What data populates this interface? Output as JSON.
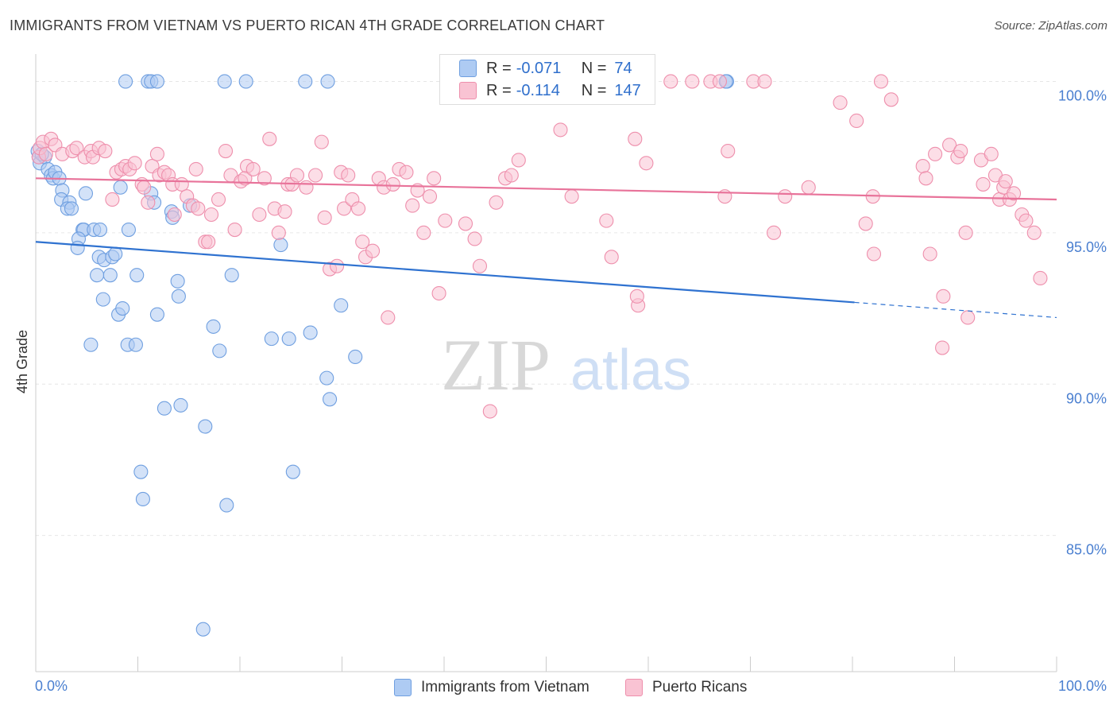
{
  "header": {
    "title": "IMMIGRANTS FROM VIETNAM VS PUERTO RICAN 4TH GRADE CORRELATION CHART",
    "source": "Source: ZipAtlas.com"
  },
  "watermark": {
    "zip": "ZIP",
    "atlas": "atlas"
  },
  "legend": {
    "r_label": "R =",
    "n_label": "N =",
    "rows": [
      {
        "r": "-0.071",
        "n": "74",
        "fill": "#aecbf3",
        "stroke": "#6f9fe0"
      },
      {
        "r": "-0.114",
        "n": "147",
        "fill": "#f9c3d3",
        "stroke": "#ee8fac"
      }
    ]
  },
  "bottom_legend": {
    "items": [
      {
        "label": "Immigrants from Vietnam",
        "fill": "#aecbf3",
        "stroke": "#6f9fe0"
      },
      {
        "label": "Puerto Ricans",
        "fill": "#f9c3d3",
        "stroke": "#ee8fac"
      }
    ]
  },
  "colors": {
    "blue_line": "#2f72d0",
    "pink_line": "#e8739a",
    "tick_label": "#4a7fd0",
    "grid": "#e6e6e6"
  },
  "chart_data": {
    "type": "scatter",
    "title": "IMMIGRANTS FROM VIETNAM VS PUERTO RICAN 4TH GRADE CORRELATION CHART",
    "ylabel": "4th Grade",
    "xlabel": "",
    "xlim": [
      0,
      100
    ],
    "ylim": [
      80.5,
      100.8
    ],
    "x_tick_labels": [
      "0.0%",
      "100.0%"
    ],
    "y_ticks": [
      85,
      90,
      95,
      100
    ],
    "y_tick_labels": [
      "85.0%",
      "90.0%",
      "95.0%",
      "100.0%"
    ],
    "grid": "horizontal dashed",
    "legend_position": "top-center",
    "series": [
      {
        "name": "Immigrants from Vietnam",
        "r": -0.071,
        "n": 74,
        "trend": {
          "x0": 0,
          "y0": 94.7,
          "x1": 80.2,
          "y1": 92.7,
          "dash_to_x": 100,
          "dash_to_y": 92.2
        },
        "points": [
          [
            0.2,
            97.7
          ],
          [
            0.3,
            97.5
          ],
          [
            0.4,
            97.3
          ],
          [
            0.9,
            97.5
          ],
          [
            0.6,
            97.6
          ],
          [
            1.2,
            97.1
          ],
          [
            1.5,
            96.9
          ],
          [
            1.7,
            96.8
          ],
          [
            1.9,
            97.0
          ],
          [
            2.3,
            96.8
          ],
          [
            2.6,
            96.4
          ],
          [
            2.5,
            96.1
          ],
          [
            3.3,
            96.0
          ],
          [
            3.1,
            95.8
          ],
          [
            3.5,
            95.8
          ],
          [
            4.9,
            96.3
          ],
          [
            4.6,
            95.1
          ],
          [
            4.7,
            95.1
          ],
          [
            5.7,
            95.1
          ],
          [
            4.2,
            94.8
          ],
          [
            4.1,
            94.5
          ],
          [
            6.3,
            95.1
          ],
          [
            9.1,
            95.1
          ],
          [
            8.3,
            96.5
          ],
          [
            11.3,
            96.3
          ],
          [
            11.6,
            96.0
          ],
          [
            13.3,
            95.7
          ],
          [
            13.4,
            95.5
          ],
          [
            15.1,
            95.9
          ],
          [
            6.2,
            94.2
          ],
          [
            6.7,
            94.1
          ],
          [
            7.5,
            94.2
          ],
          [
            7.8,
            94.3
          ],
          [
            6.0,
            93.6
          ],
          [
            7.3,
            93.6
          ],
          [
            9.9,
            93.6
          ],
          [
            13.9,
            93.4
          ],
          [
            19.2,
            93.6
          ],
          [
            6.6,
            92.8
          ],
          [
            8.1,
            92.3
          ],
          [
            8.5,
            92.5
          ],
          [
            11.9,
            92.3
          ],
          [
            14.0,
            92.9
          ],
          [
            5.4,
            91.3
          ],
          [
            9.0,
            91.3
          ],
          [
            9.8,
            91.3
          ],
          [
            17.4,
            91.9
          ],
          [
            18.0,
            91.1
          ],
          [
            23.1,
            91.5
          ],
          [
            24.8,
            91.5
          ],
          [
            26.9,
            91.7
          ],
          [
            29.9,
            92.6
          ],
          [
            31.3,
            90.9
          ],
          [
            28.5,
            90.2
          ],
          [
            28.8,
            89.5
          ],
          [
            12.6,
            89.2
          ],
          [
            14.2,
            89.3
          ],
          [
            16.6,
            88.6
          ],
          [
            10.3,
            87.1
          ],
          [
            25.2,
            87.1
          ],
          [
            10.5,
            86.2
          ],
          [
            18.7,
            86.0
          ],
          [
            16.4,
            81.9
          ],
          [
            8.8,
            100.0
          ],
          [
            11.0,
            100.0
          ],
          [
            11.3,
            100.0
          ],
          [
            11.9,
            100.0
          ],
          [
            18.5,
            100.0
          ],
          [
            20.6,
            100.0
          ],
          [
            26.4,
            100.0
          ],
          [
            28.6,
            100.0
          ],
          [
            67.7,
            100.0
          ],
          [
            67.6,
            100.0
          ],
          [
            24.0,
            94.6
          ]
        ]
      },
      {
        "name": "Puerto Ricans",
        "r": -0.114,
        "n": 147,
        "trend": {
          "x0": 0,
          "y0": 96.8,
          "x1": 100,
          "y1": 96.1
        },
        "points": [
          [
            0.3,
            97.5
          ],
          [
            0.4,
            97.8
          ],
          [
            0.7,
            98.0
          ],
          [
            1.0,
            97.6
          ],
          [
            1.5,
            98.1
          ],
          [
            1.9,
            97.9
          ],
          [
            2.6,
            97.6
          ],
          [
            3.6,
            97.7
          ],
          [
            4.0,
            97.8
          ],
          [
            4.8,
            97.5
          ],
          [
            5.4,
            97.7
          ],
          [
            5.6,
            97.5
          ],
          [
            6.2,
            97.8
          ],
          [
            6.8,
            97.7
          ],
          [
            7.5,
            96.1
          ],
          [
            7.9,
            97.0
          ],
          [
            8.4,
            97.1
          ],
          [
            8.8,
            97.2
          ],
          [
            9.2,
            97.1
          ],
          [
            9.7,
            97.3
          ],
          [
            10.4,
            96.6
          ],
          [
            10.6,
            96.5
          ],
          [
            11.0,
            96.0
          ],
          [
            11.4,
            97.2
          ],
          [
            11.9,
            97.6
          ],
          [
            12.1,
            96.9
          ],
          [
            12.6,
            97.0
          ],
          [
            13.0,
            96.9
          ],
          [
            13.4,
            96.6
          ],
          [
            13.6,
            95.6
          ],
          [
            14.3,
            96.6
          ],
          [
            14.8,
            96.2
          ],
          [
            15.4,
            95.9
          ],
          [
            15.9,
            95.8
          ],
          [
            15.7,
            97.1
          ],
          [
            16.6,
            94.7
          ],
          [
            16.9,
            94.7
          ],
          [
            17.2,
            95.6
          ],
          [
            17.9,
            96.1
          ],
          [
            18.6,
            97.7
          ],
          [
            19.1,
            96.9
          ],
          [
            19.5,
            95.1
          ],
          [
            20.1,
            96.7
          ],
          [
            20.7,
            97.2
          ],
          [
            20.5,
            96.8
          ],
          [
            21.3,
            97.1
          ],
          [
            21.9,
            95.6
          ],
          [
            22.4,
            96.8
          ],
          [
            22.9,
            98.1
          ],
          [
            23.4,
            95.8
          ],
          [
            23.8,
            95.0
          ],
          [
            24.4,
            95.7
          ],
          [
            24.7,
            96.6
          ],
          [
            25.1,
            96.6
          ],
          [
            25.6,
            96.9
          ],
          [
            26.5,
            96.5
          ],
          [
            27.4,
            96.9
          ],
          [
            28.0,
            98.0
          ],
          [
            28.3,
            95.5
          ],
          [
            28.8,
            93.8
          ],
          [
            29.5,
            93.9
          ],
          [
            29.9,
            97.0
          ],
          [
            30.2,
            95.8
          ],
          [
            30.6,
            96.9
          ],
          [
            31.0,
            96.1
          ],
          [
            31.6,
            95.8
          ],
          [
            32.0,
            94.7
          ],
          [
            32.3,
            94.2
          ],
          [
            33.0,
            94.4
          ],
          [
            33.6,
            96.8
          ],
          [
            34.1,
            96.5
          ],
          [
            34.5,
            92.2
          ],
          [
            35.0,
            96.6
          ],
          [
            35.6,
            97.1
          ],
          [
            36.3,
            97.0
          ],
          [
            36.9,
            95.9
          ],
          [
            37.4,
            96.4
          ],
          [
            38.0,
            95.0
          ],
          [
            38.6,
            96.2
          ],
          [
            39.0,
            96.8
          ],
          [
            39.5,
            93.0
          ],
          [
            40.1,
            95.4
          ],
          [
            41.0,
            100.0
          ],
          [
            42.1,
            95.3
          ],
          [
            43.0,
            94.8
          ],
          [
            43.5,
            93.9
          ],
          [
            44.5,
            89.1
          ],
          [
            45.1,
            96.0
          ],
          [
            46.0,
            96.8
          ],
          [
            46.6,
            96.9
          ],
          [
            47.3,
            97.4
          ],
          [
            48.0,
            100.0
          ],
          [
            50.6,
            100.0
          ],
          [
            51.1,
            100.0
          ],
          [
            51.6,
            100.0
          ],
          [
            51.4,
            98.4
          ],
          [
            52.5,
            96.2
          ],
          [
            55.5,
            100.0
          ],
          [
            57.0,
            100.0
          ],
          [
            55.9,
            95.4
          ],
          [
            56.4,
            94.2
          ],
          [
            58.7,
            98.1
          ],
          [
            59.0,
            92.6
          ],
          [
            59.8,
            97.3
          ],
          [
            58.9,
            92.9
          ],
          [
            62.2,
            100.0
          ],
          [
            64.3,
            100.0
          ],
          [
            66.1,
            100.0
          ],
          [
            67.8,
            97.7
          ],
          [
            67.5,
            96.2
          ],
          [
            67.0,
            100.0
          ],
          [
            70.3,
            100.0
          ],
          [
            71.4,
            100.0
          ],
          [
            72.3,
            95.0
          ],
          [
            73.4,
            96.2
          ],
          [
            75.7,
            96.5
          ],
          [
            78.8,
            99.3
          ],
          [
            80.4,
            98.7
          ],
          [
            81.3,
            95.3
          ],
          [
            82.1,
            94.3
          ],
          [
            82.0,
            96.2
          ],
          [
            82.8,
            100.0
          ],
          [
            83.8,
            99.4
          ],
          [
            86.9,
            97.2
          ],
          [
            87.2,
            96.8
          ],
          [
            87.6,
            94.3
          ],
          [
            88.1,
            97.6
          ],
          [
            88.8,
            91.2
          ],
          [
            88.9,
            92.9
          ],
          [
            89.5,
            97.9
          ],
          [
            90.3,
            97.5
          ],
          [
            90.6,
            97.7
          ],
          [
            91.1,
            95.0
          ],
          [
            91.3,
            92.2
          ],
          [
            92.6,
            97.4
          ],
          [
            92.8,
            96.6
          ],
          [
            93.6,
            97.6
          ],
          [
            94.0,
            96.9
          ],
          [
            94.4,
            96.1
          ],
          [
            94.8,
            96.5
          ],
          [
            95.0,
            96.7
          ],
          [
            95.4,
            96.1
          ],
          [
            95.8,
            96.3
          ],
          [
            96.6,
            95.6
          ],
          [
            97.0,
            95.4
          ],
          [
            97.8,
            95.0
          ],
          [
            98.4,
            93.5
          ]
        ]
      }
    ]
  }
}
